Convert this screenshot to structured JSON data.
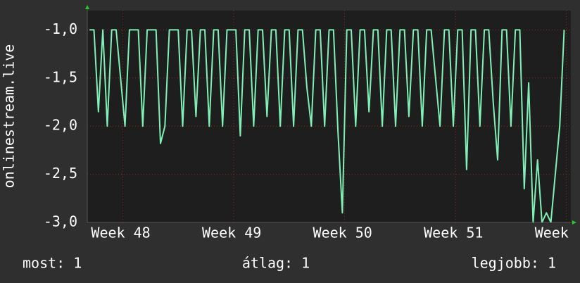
{
  "chart_data": {
    "type": "line",
    "y_label": "onlinestream.live",
    "x": [
      47.7,
      47.74,
      47.78,
      47.82,
      47.86,
      47.9,
      47.94,
      47.98,
      48.02,
      48.06,
      48.1,
      48.14,
      48.18,
      48.22,
      48.26,
      48.3,
      48.34,
      48.38,
      48.42,
      48.46,
      48.5,
      48.54,
      48.58,
      48.62,
      48.66,
      48.7,
      48.74,
      48.78,
      48.82,
      48.86,
      48.9,
      48.94,
      48.98,
      49.02,
      49.06,
      49.1,
      49.14,
      49.18,
      49.22,
      49.26,
      49.3,
      49.34,
      49.38,
      49.42,
      49.46,
      49.5,
      49.54,
      49.58,
      49.62,
      49.66,
      49.7,
      49.74,
      49.78,
      49.82,
      49.86,
      49.9,
      49.94,
      49.98,
      50.02,
      50.06,
      50.1,
      50.14,
      50.18,
      50.22,
      50.26,
      50.3,
      50.34,
      50.38,
      50.42,
      50.46,
      50.5,
      50.54,
      50.58,
      50.62,
      50.66,
      50.7,
      50.74,
      50.78,
      50.82,
      50.86,
      50.9,
      50.94,
      50.98,
      51.02,
      51.06,
      51.1,
      51.14,
      51.18,
      51.22,
      51.26,
      51.3,
      51.34,
      51.38,
      51.42,
      51.46,
      51.5,
      51.54,
      51.58,
      51.62,
      51.66,
      51.7,
      51.74,
      51.78,
      51.82,
      51.86,
      51.9,
      51.94,
      51.98
    ],
    "series": [
      {
        "color": "#80f0b8",
        "values": [
          -1,
          -1,
          -1.85,
          -1,
          -2,
          -1,
          -1,
          -1.5,
          -2,
          -1,
          -1,
          -1,
          -2,
          -1,
          -1,
          -1,
          -2.18,
          -2,
          -1,
          -1,
          -1,
          -2,
          -1,
          -1,
          -1.9,
          -1,
          -1,
          -2,
          -1,
          -1,
          -2,
          -1,
          -1,
          -1,
          -2.1,
          -1,
          -1,
          -2,
          -1,
          -1,
          -1.9,
          -1,
          -1,
          -2,
          -1,
          -1,
          -2,
          -1,
          -1,
          -1.6,
          -2,
          -1,
          -1,
          -2,
          -1,
          -1,
          -2.05,
          -2.9,
          -1,
          -1,
          -2,
          -1,
          -1,
          -1.85,
          -1,
          -1,
          -2,
          -1,
          -1,
          -2,
          -1,
          -1,
          -1.9,
          -1,
          -1,
          -2,
          -1,
          -1,
          -1.5,
          -2,
          -1,
          -1,
          -2,
          -1,
          -1,
          -2.45,
          -1,
          -1,
          -2,
          -1,
          -1,
          -1.75,
          -2.35,
          -1,
          -1,
          -2,
          -1,
          -1,
          -2.65,
          -1.55,
          -3,
          -2.35,
          -3,
          -2.9,
          -3,
          -2.5,
          -2,
          -1
        ]
      }
    ],
    "xlim": [
      47.68,
      52.04
    ],
    "xticks": [
      {
        "value": 48,
        "label": "Week 48"
      },
      {
        "value": 49,
        "label": "Week 49"
      },
      {
        "value": 50,
        "label": "Week 50"
      },
      {
        "value": 51,
        "label": "Week 51"
      },
      {
        "value": 52,
        "label": "Week"
      }
    ],
    "ylim": [
      -3,
      -0.8
    ],
    "yticks": [
      {
        "value": -3,
        "label": "-3,0"
      },
      {
        "value": -2.5,
        "label": "-2,5"
      },
      {
        "value": -2,
        "label": "-2,0"
      },
      {
        "value": -1.5,
        "label": "-1,5"
      },
      {
        "value": -1,
        "label": "-1,0"
      }
    ],
    "grid": true,
    "stats": [
      "most: 1",
      "átlag: 1",
      "legjobb: 1"
    ]
  }
}
